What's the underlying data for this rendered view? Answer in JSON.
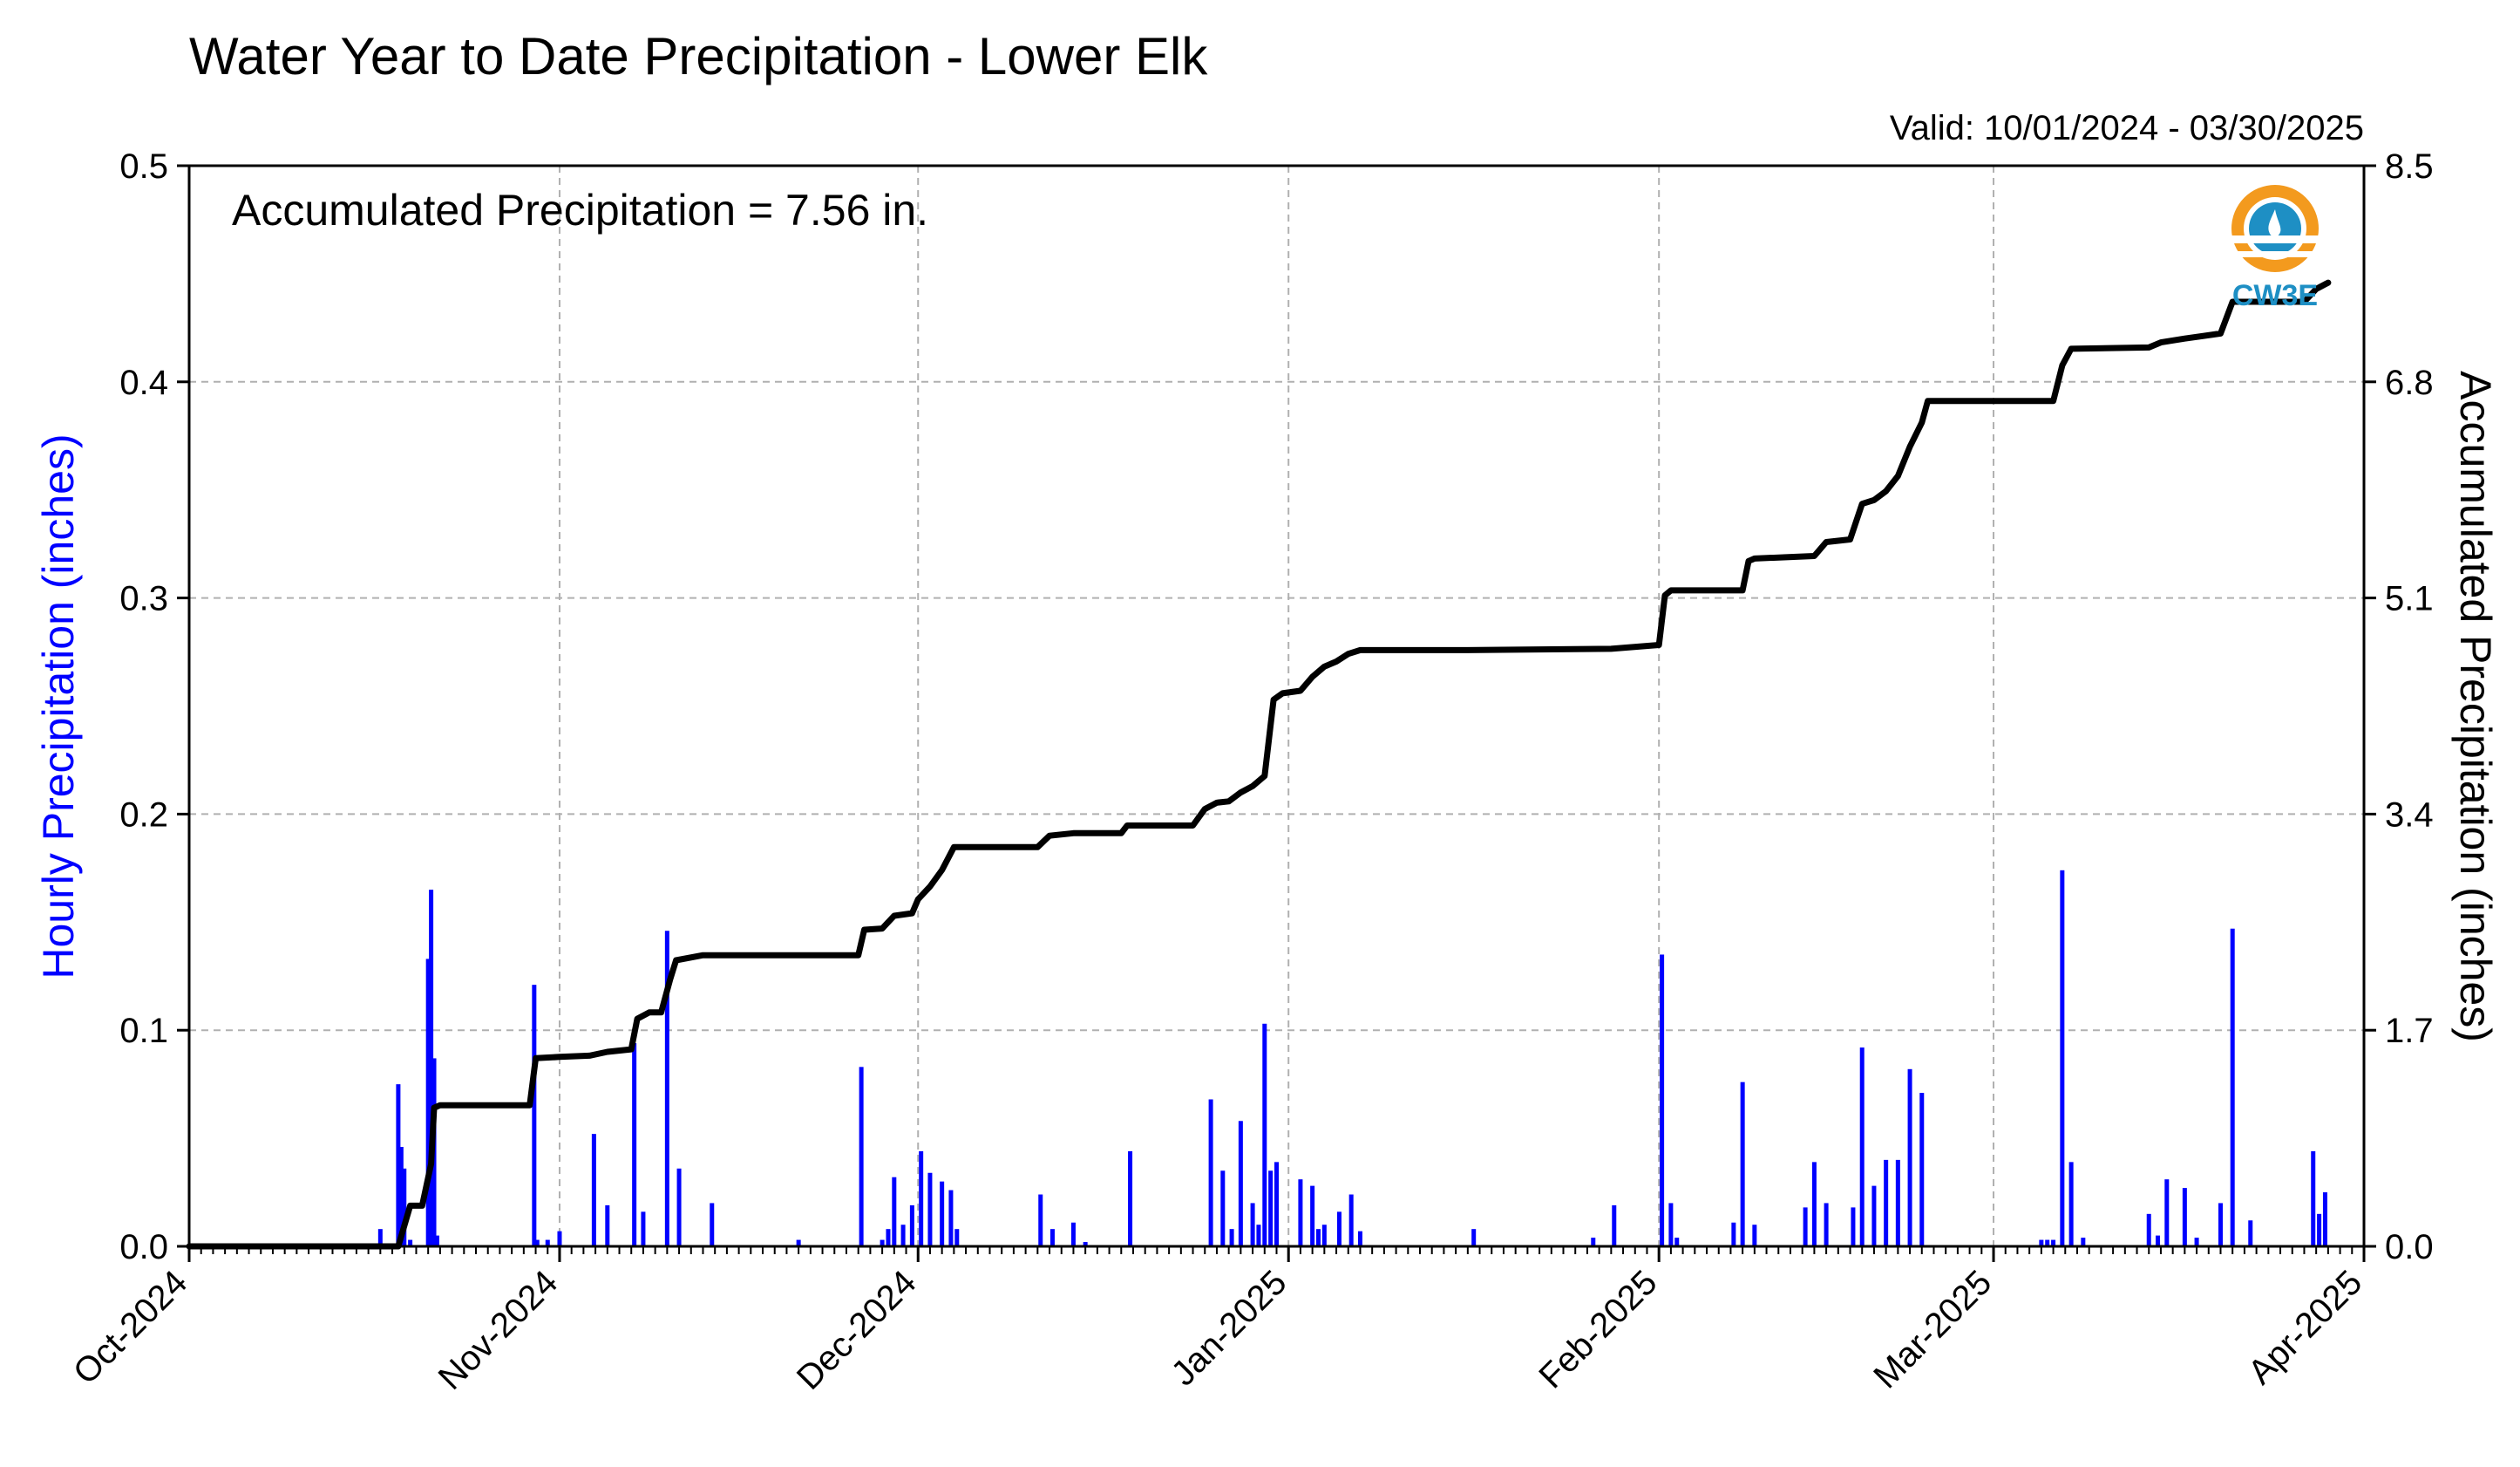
{
  "chart_data": {
    "type": "bar+line",
    "title": "Water Year to Date Precipitation - Lower Elk",
    "valid": "Valid: 10/01/2024 - 03/30/2025",
    "annotation": "Accumulated Precipitation = 7.56 in.",
    "logo_text": "CW3E",
    "ylabel_left": "Hourly Precipitation (inches)",
    "ylabel_right": "Accumulated Precipitation (inches)",
    "ylim_left": [
      0,
      0.5
    ],
    "ylim_right": [
      0,
      8.5
    ],
    "xlim": [
      "2024-10-01",
      "2025-04-01"
    ],
    "yticks_left": [
      "0.0",
      "0.1",
      "0.2",
      "0.3",
      "0.4",
      "0.5"
    ],
    "yticks_right": [
      "0.0",
      "1.7",
      "3.4",
      "5.1",
      "6.8",
      "8.5"
    ],
    "xticks": [
      {
        "date": "2024-10-01",
        "label": "Oct-2024"
      },
      {
        "date": "2024-11-01",
        "label": "Nov-2024"
      },
      {
        "date": "2024-12-01",
        "label": "Dec-2024"
      },
      {
        "date": "2025-01-01",
        "label": "Jan-2025"
      },
      {
        "date": "2025-02-01",
        "label": "Feb-2025"
      },
      {
        "date": "2025-03-01",
        "label": "Mar-2025"
      },
      {
        "date": "2025-04-01",
        "label": "Apr-2025"
      }
    ],
    "grid": true,
    "colors": {
      "hourly": "#0000ff",
      "accumulated": "#000000",
      "grid": "#b0b0b0",
      "logo_orange": "#f39a1e",
      "logo_blue": "#1e8fc4"
    },
    "series": [
      {
        "name": "Hourly Precipitation",
        "axis": "left",
        "points": [
          [
            "2024-10-17T00",
            0.008
          ],
          [
            "2024-10-18T12",
            0.075
          ],
          [
            "2024-10-18T18",
            0.046
          ],
          [
            "2024-10-19T00",
            0.036
          ],
          [
            "2024-10-19T12",
            0.003
          ],
          [
            "2024-10-21T00",
            0.133
          ],
          [
            "2024-10-21T06",
            0.165
          ],
          [
            "2024-10-21T12",
            0.087
          ],
          [
            "2024-10-21T18",
            0.005
          ],
          [
            "2024-10-29T21",
            0.121
          ],
          [
            "2024-10-30T03",
            0.003
          ],
          [
            "2024-10-31T00",
            0.003
          ],
          [
            "2024-11-01T00",
            0.007
          ],
          [
            "2024-11-03T21",
            0.052
          ],
          [
            "2024-11-05T00",
            0.019
          ],
          [
            "2024-11-07T06",
            0.094
          ],
          [
            "2024-11-08T00",
            0.016
          ],
          [
            "2024-11-10T00",
            0.146
          ],
          [
            "2024-11-11T00",
            0.036
          ],
          [
            "2024-11-13T18",
            0.02
          ],
          [
            "2024-11-21T00",
            0.003
          ],
          [
            "2024-11-26T06",
            0.083
          ],
          [
            "2024-11-28T00",
            0.003
          ],
          [
            "2024-11-28T12",
            0.008
          ],
          [
            "2024-11-29T00",
            0.032
          ],
          [
            "2024-11-29T18",
            0.01
          ],
          [
            "2024-11-30T12",
            0.019
          ],
          [
            "2024-12-01T06",
            0.044
          ],
          [
            "2024-12-02T00",
            0.034
          ],
          [
            "2024-12-03T00",
            0.03
          ],
          [
            "2024-12-03T18",
            0.026
          ],
          [
            "2024-12-04T06",
            0.008
          ],
          [
            "2024-12-11T06",
            0.024
          ],
          [
            "2024-12-12T06",
            0.008
          ],
          [
            "2024-12-14T00",
            0.011
          ],
          [
            "2024-12-15T00",
            0.002
          ],
          [
            "2024-12-18T18",
            0.044
          ],
          [
            "2024-12-25T12",
            0.068
          ],
          [
            "2024-12-26T12",
            0.035
          ],
          [
            "2024-12-27T06",
            0.008
          ],
          [
            "2024-12-28T00",
            0.058
          ],
          [
            "2024-12-29T00",
            0.02
          ],
          [
            "2024-12-29T12",
            0.01
          ],
          [
            "2024-12-30T00",
            0.103
          ],
          [
            "2024-12-30T12",
            0.035
          ],
          [
            "2024-12-31T00",
            0.039
          ],
          [
            "2025-01-02T00",
            0.031
          ],
          [
            "2025-01-03T00",
            0.028
          ],
          [
            "2025-01-03T12",
            0.008
          ],
          [
            "2025-01-04T00",
            0.01
          ],
          [
            "2025-01-05T06",
            0.016
          ],
          [
            "2025-01-06T06",
            0.024
          ],
          [
            "2025-01-07T00",
            0.007
          ],
          [
            "2025-01-16T12",
            0.008
          ],
          [
            "2025-01-26T12",
            0.004
          ],
          [
            "2025-01-28T06",
            0.019
          ],
          [
            "2025-02-01T06",
            0.135
          ],
          [
            "2025-02-02T00",
            0.02
          ],
          [
            "2025-02-02T12",
            0.004
          ],
          [
            "2025-02-07T06",
            0.011
          ],
          [
            "2025-02-08T00",
            0.076
          ],
          [
            "2025-02-09T00",
            0.01
          ],
          [
            "2025-02-13T06",
            0.018
          ],
          [
            "2025-02-14T00",
            0.039
          ],
          [
            "2025-02-15T00",
            0.02
          ],
          [
            "2025-02-17T06",
            0.018
          ],
          [
            "2025-02-18T00",
            0.092
          ],
          [
            "2025-02-19T00",
            0.028
          ],
          [
            "2025-02-20T00",
            0.04
          ],
          [
            "2025-02-21T00",
            0.04
          ],
          [
            "2025-02-22T00",
            0.082
          ],
          [
            "2025-02-23T00",
            0.071
          ],
          [
            "2025-03-05T00",
            0.003
          ],
          [
            "2025-03-05T12",
            0.003
          ],
          [
            "2025-03-06T00",
            0.003
          ],
          [
            "2025-03-06T18",
            0.174
          ],
          [
            "2025-03-07T12",
            0.039
          ],
          [
            "2025-03-08T12",
            0.004
          ],
          [
            "2025-03-14T00",
            0.015
          ],
          [
            "2025-03-14T18",
            0.005
          ],
          [
            "2025-03-15T12",
            0.031
          ],
          [
            "2025-03-17T00",
            0.027
          ],
          [
            "2025-03-18T00",
            0.004
          ],
          [
            "2025-03-20T00",
            0.02
          ],
          [
            "2025-03-21T00",
            0.147
          ],
          [
            "2025-03-22T12",
            0.012
          ],
          [
            "2025-03-27T18",
            0.044
          ],
          [
            "2025-03-28T06",
            0.015
          ],
          [
            "2025-03-28T18",
            0.025
          ]
        ]
      },
      {
        "name": "Accumulated Precipitation",
        "axis": "right",
        "points": [
          [
            "2024-10-01",
            0.0
          ],
          [
            "2024-10-18T12",
            0.0
          ],
          [
            "2024-10-19T12",
            0.32
          ],
          [
            "2024-10-20T12",
            0.32
          ],
          [
            "2024-10-21T06",
            0.65
          ],
          [
            "2024-10-21T12",
            1.09
          ],
          [
            "2024-10-22",
            1.11
          ],
          [
            "2024-10-29T12",
            1.11
          ],
          [
            "2024-10-30T00",
            1.48
          ],
          [
            "2024-11-01",
            1.49
          ],
          [
            "2024-11-03T12",
            1.5
          ],
          [
            "2024-11-05",
            1.53
          ],
          [
            "2024-11-07",
            1.55
          ],
          [
            "2024-11-07T12",
            1.79
          ],
          [
            "2024-11-08T12",
            1.84
          ],
          [
            "2024-11-09T12",
            1.84
          ],
          [
            "2024-11-10T06",
            2.1
          ],
          [
            "2024-11-10T18",
            2.25
          ],
          [
            "2024-11-13",
            2.29
          ],
          [
            "2024-11-26",
            2.29
          ],
          [
            "2024-11-26T12",
            2.49
          ],
          [
            "2024-11-28",
            2.5
          ],
          [
            "2024-11-29",
            2.6
          ],
          [
            "2024-11-30T12",
            2.62
          ],
          [
            "2024-12-01",
            2.73
          ],
          [
            "2024-12-02",
            2.83
          ],
          [
            "2024-12-03",
            2.96
          ],
          [
            "2024-12-04",
            3.14
          ],
          [
            "2024-12-11",
            3.14
          ],
          [
            "2024-12-12",
            3.23
          ],
          [
            "2024-12-14",
            3.25
          ],
          [
            "2024-12-18",
            3.25
          ],
          [
            "2024-12-18T12",
            3.31
          ],
          [
            "2024-12-24",
            3.31
          ],
          [
            "2024-12-25",
            3.44
          ],
          [
            "2024-12-26",
            3.49
          ],
          [
            "2024-12-27",
            3.5
          ],
          [
            "2024-12-28",
            3.57
          ],
          [
            "2024-12-29",
            3.62
          ],
          [
            "2024-12-30",
            3.7
          ],
          [
            "2024-12-30T18",
            4.3
          ],
          [
            "2024-12-31T12",
            4.35
          ],
          [
            "2025-01-02",
            4.37
          ],
          [
            "2025-01-03",
            4.48
          ],
          [
            "2025-01-04",
            4.56
          ],
          [
            "2025-01-05",
            4.6
          ],
          [
            "2025-01-06",
            4.66
          ],
          [
            "2025-01-07",
            4.69
          ],
          [
            "2025-01-16",
            4.69
          ],
          [
            "2025-01-28",
            4.7
          ],
          [
            "2025-02-01",
            4.73
          ],
          [
            "2025-02-01T12",
            5.12
          ],
          [
            "2025-02-02",
            5.16
          ],
          [
            "2025-02-08",
            5.16
          ],
          [
            "2025-02-08T12",
            5.39
          ],
          [
            "2025-02-09",
            5.41
          ],
          [
            "2025-02-14",
            5.43
          ],
          [
            "2025-02-15",
            5.54
          ],
          [
            "2025-02-17",
            5.56
          ],
          [
            "2025-02-18",
            5.84
          ],
          [
            "2025-02-19",
            5.87
          ],
          [
            "2025-02-20",
            5.94
          ],
          [
            "2025-02-21",
            6.06
          ],
          [
            "2025-02-22",
            6.29
          ],
          [
            "2025-02-23",
            6.48
          ],
          [
            "2025-02-23T12",
            6.65
          ],
          [
            "2025-03-06",
            6.65
          ],
          [
            "2025-03-06T18",
            6.93
          ],
          [
            "2025-03-07T12",
            7.06
          ],
          [
            "2025-03-14",
            7.07
          ],
          [
            "2025-03-15",
            7.11
          ],
          [
            "2025-03-17",
            7.14
          ],
          [
            "2025-03-20",
            7.18
          ],
          [
            "2025-03-21",
            7.43
          ],
          [
            "2025-03-27",
            7.43
          ],
          [
            "2025-03-28",
            7.53
          ],
          [
            "2025-03-29",
            7.58
          ]
        ]
      }
    ]
  }
}
